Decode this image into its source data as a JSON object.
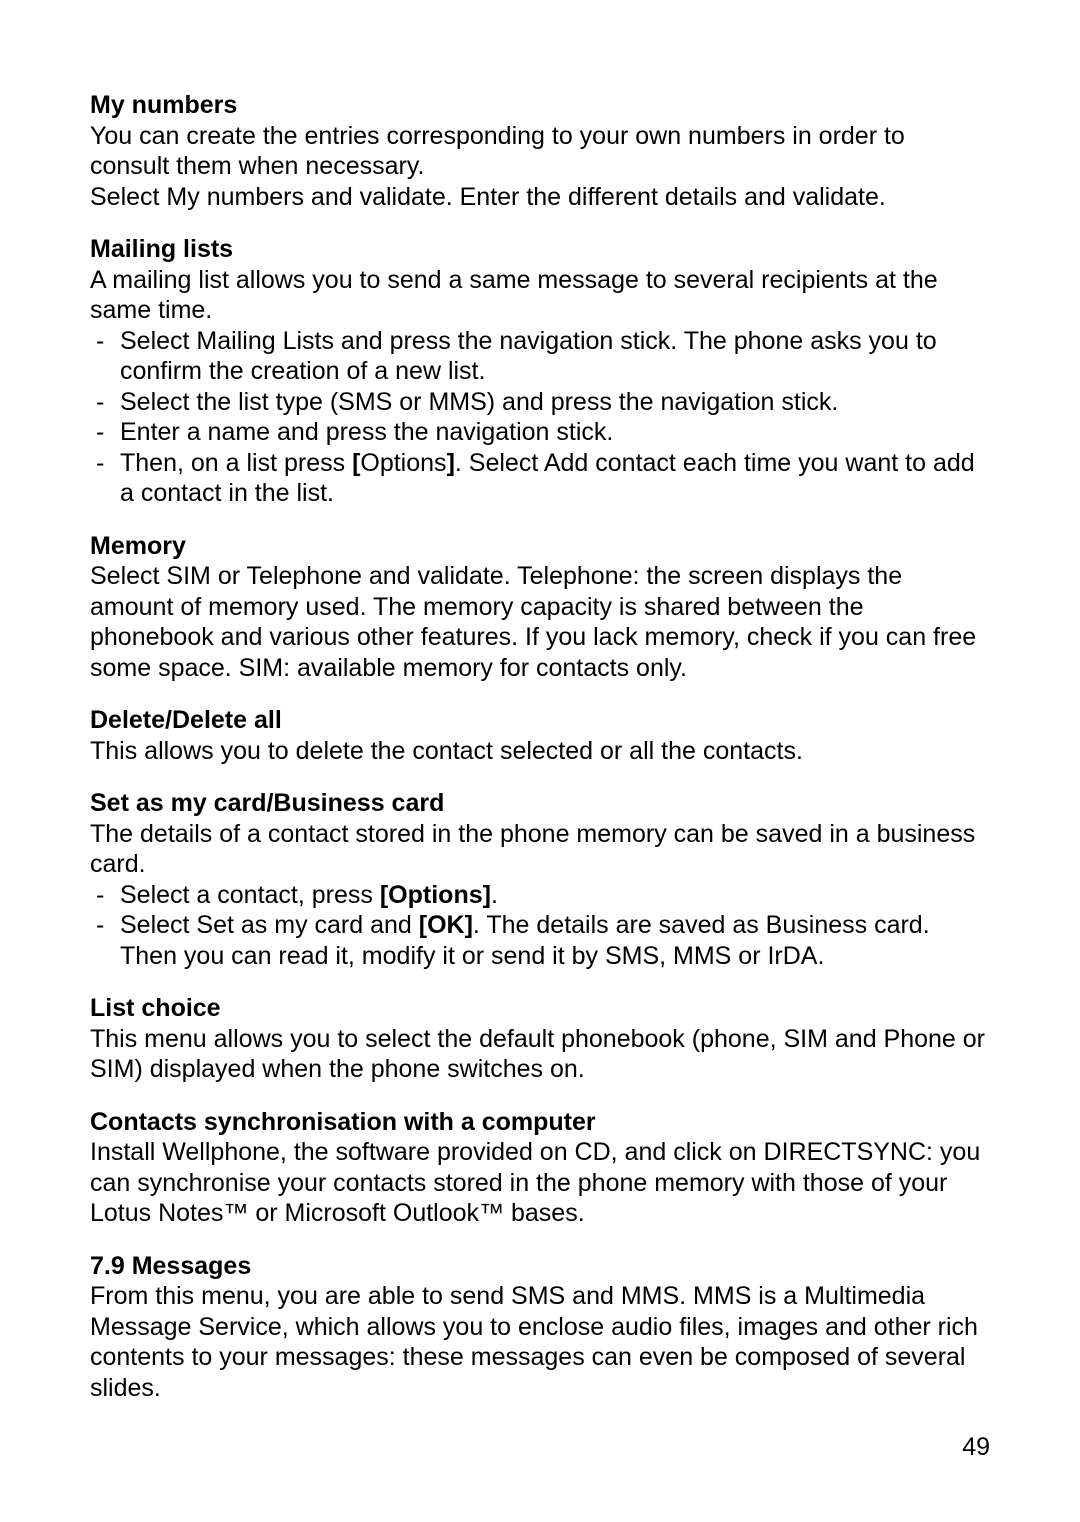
{
  "page_number": "49",
  "sections": {
    "my_numbers": {
      "heading": "My numbers",
      "p1": "You can create the entries corresponding to your own numbers in order to consult them when necessary.",
      "p2": "Select My numbers and validate. Enter the different details and validate."
    },
    "mailing_lists": {
      "heading": "Mailing lists",
      "p1": "A mailing list allows you to send a same message to several recipients at the same time.",
      "items": {
        "i1": "Select Mailing Lists and press the navigation stick. The phone asks you to confirm the creation of a new list.",
        "i2": "Select the list type (SMS or MMS) and press the navigation stick.",
        "i3": "Enter a name and press the navigation stick.",
        "i4_a": "Then, on a list press ",
        "i4_b": "[",
        "i4_c": "Options",
        "i4_d": "]",
        "i4_e": ". Select Add contact each time you want to add a contact in the list."
      }
    },
    "memory": {
      "heading": "Memory",
      "p1": "Select SIM or Telephone and validate. Telephone: the screen displays the amount of memory used. The memory capacity is shared between the phonebook and various other features. If you lack memory, check if you can free some space. SIM: available memory for contacts only."
    },
    "delete": {
      "heading": "Delete/Delete all",
      "p1": "This allows you to delete the contact selected or all the contacts."
    },
    "business_card": {
      "heading": "Set as my card/Business card",
      "p1": "The details of a contact stored in the phone memory can be saved in a business card.",
      "items": {
        "i1_a": "Select a contact, press ",
        "i1_b": "[Options]",
        "i1_c": ".",
        "i2_a": "Select Set as my card and ",
        "i2_b": "[OK]",
        "i2_c": ". The details are saved as Business card. Then you can read it, modify it or send it by SMS, MMS or IrDA."
      }
    },
    "list_choice": {
      "heading": "List choice",
      "p1": "This menu allows you to select the default phonebook (phone, SIM and Phone or SIM) displayed when the phone switches on."
    },
    "contacts_sync": {
      "heading": "Contacts synchronisation with a computer",
      "p1": "Install Wellphone, the software provided on CD, and click on DIRECTSYNC: you can synchronise your contacts stored in the phone memory with those of your Lotus Notes™ or Microsoft Outlook™ bases."
    },
    "messages": {
      "heading": "7.9 Messages",
      "p1": "From this menu, you are able to send SMS and MMS. MMS is a Multimedia Message Service, which allows you to enclose audio files, images and other rich contents to your messages: these messages can even be composed of several slides."
    }
  }
}
